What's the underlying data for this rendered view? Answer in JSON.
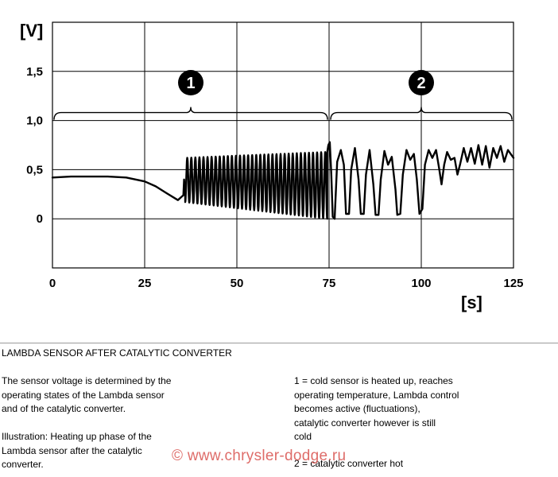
{
  "chart_data": {
    "type": "line",
    "x_unit_label": "[s]",
    "y_unit_label": "[V]",
    "xlim": [
      0,
      125
    ],
    "ylim": [
      -0.5,
      2.0
    ],
    "x_ticks": [
      0,
      25,
      50,
      75,
      100,
      125
    ],
    "x_tick_labels": [
      "0",
      "25",
      "50",
      "75",
      "100",
      "125"
    ],
    "y_ticks": [
      0,
      0.5,
      1.0,
      1.5
    ],
    "y_tick_labels": [
      "0",
      "0,5",
      "1,0",
      "1,5"
    ],
    "grid": true,
    "phases": [
      {
        "label": "1",
        "x_start": 0,
        "x_end": 75,
        "y": 1.0
      },
      {
        "label": "2",
        "x_start": 75,
        "x_end": 125,
        "y": 1.0
      }
    ],
    "series": [
      {
        "segments": [
          {
            "mode": "smooth",
            "points": [
              [
                0,
                0.42
              ],
              [
                5,
                0.43
              ],
              [
                10,
                0.43
              ],
              [
                15,
                0.43
              ],
              [
                20,
                0.42
              ],
              [
                25,
                0.38
              ],
              [
                28,
                0.33
              ],
              [
                31,
                0.26
              ],
              [
                34,
                0.19
              ],
              [
                35.5,
                0.24
              ],
              [
                35.7,
                0.4
              ],
              [
                36,
                0.22
              ]
            ]
          },
          {
            "mode": "osc",
            "x_start": 36,
            "x_end": 74.5,
            "period": 1.1,
            "min_start": 0.17,
            "min_end": 0.0,
            "max_start": 0.62,
            "max_end": 0.68
          },
          {
            "mode": "smooth",
            "points": [
              [
                74.5,
                0.68
              ],
              [
                74.8,
                0.75
              ],
              [
                75.2,
                0.78
              ],
              [
                75.6,
                0.45
              ],
              [
                76,
                0.02
              ],
              [
                76.5,
                0.0
              ],
              [
                77.2,
                0.58
              ],
              [
                78.2,
                0.7
              ],
              [
                79,
                0.55
              ],
              [
                79.6,
                0.05
              ],
              [
                80.4,
                0.05
              ],
              [
                81,
                0.5
              ],
              [
                82,
                0.72
              ],
              [
                83,
                0.4
              ],
              [
                83.6,
                0.05
              ],
              [
                84.4,
                0.05
              ],
              [
                85,
                0.45
              ],
              [
                86,
                0.7
              ],
              [
                87,
                0.35
              ],
              [
                87.6,
                0.04
              ],
              [
                88.4,
                0.04
              ],
              [
                89,
                0.4
              ],
              [
                90,
                0.69
              ],
              [
                91,
                0.55
              ],
              [
                92,
                0.63
              ],
              [
                93,
                0.3
              ],
              [
                93.5,
                0.04
              ],
              [
                94.3,
                0.05
              ],
              [
                95,
                0.45
              ],
              [
                96,
                0.7
              ],
              [
                97,
                0.6
              ],
              [
                98,
                0.66
              ],
              [
                98.8,
                0.4
              ],
              [
                99.5,
                0.05
              ],
              [
                100.3,
                0.1
              ],
              [
                101,
                0.55
              ],
              [
                102,
                0.7
              ],
              [
                103,
                0.62
              ],
              [
                104,
                0.7
              ],
              [
                104.8,
                0.52
              ],
              [
                105.5,
                0.35
              ],
              [
                106.2,
                0.55
              ],
              [
                107,
                0.68
              ],
              [
                108,
                0.6
              ],
              [
                109,
                0.62
              ],
              [
                109.8,
                0.45
              ],
              [
                110.5,
                0.55
              ],
              [
                111.5,
                0.72
              ],
              [
                112.5,
                0.58
              ],
              [
                113.5,
                0.72
              ],
              [
                114.5,
                0.56
              ],
              [
                115.5,
                0.75
              ],
              [
                116.5,
                0.55
              ],
              [
                117.5,
                0.74
              ],
              [
                118.5,
                0.52
              ],
              [
                119.5,
                0.72
              ],
              [
                120.5,
                0.62
              ],
              [
                121.5,
                0.74
              ],
              [
                122.5,
                0.58
              ],
              [
                123.5,
                0.7
              ],
              [
                125,
                0.62
              ]
            ]
          }
        ]
      }
    ]
  },
  "description": {
    "heading": "LAMBDA SENSOR AFTER CATALYTIC CONVERTER",
    "left_para_1": "The sensor voltage is determined by the\noperating states of the Lambda sensor\nand of the catalytic converter.",
    "left_para_2": "Illustration: Heating up phase of the\nLambda sensor after the catalytic\nconverter.",
    "right_para_1": "1 = cold sensor is heated up, reaches\noperating temperature, Lambda control\nbecomes active (fluctuations),\ncatalytic converter however is still\ncold",
    "right_para_2": "2 = catalytic converter hot"
  },
  "watermark": "© www.chrysler-dodge.ru"
}
